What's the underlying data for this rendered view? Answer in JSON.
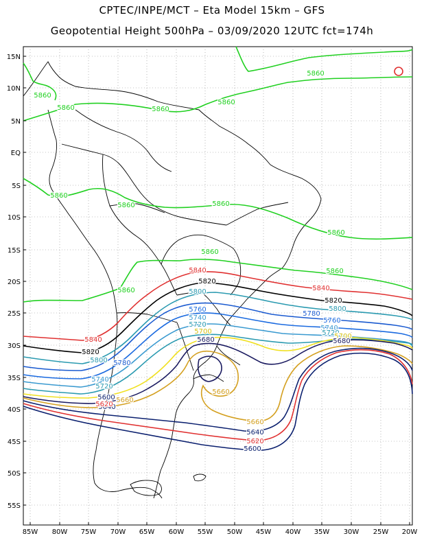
{
  "title_line1": "CPTEC/INPE/MCT –   Eta Model 15km – GFS",
  "title_line2": "Geopotential Height 500hPa – 03/09/2020 12UTC fct=174h",
  "lat_labels": [
    "15N",
    "10N",
    "5N",
    "EQ",
    "5S",
    "10S",
    "15S",
    "20S",
    "25S",
    "30S",
    "35S",
    "40S",
    "45S",
    "50S",
    "55S"
  ],
  "lon_labels": [
    "85W",
    "80W",
    "75W",
    "70W",
    "65W",
    "60W",
    "55W",
    "50W",
    "45W",
    "40W",
    "35W",
    "30W",
    "25W",
    "20W"
  ],
  "contour_colors": {
    "5600": "#0a1f6e",
    "5620": "#e03030",
    "5640": "#0a1f6e",
    "5660": "#d4a020",
    "5680": "#1a1a60",
    "5700": "#f0e020",
    "5720": "#2a9ab0",
    "5740": "#3a9ad0",
    "5760": "#1a6ae0",
    "5780": "#1a5ad0",
    "5800": "#2a9ab0",
    "5820": "#000000",
    "5840": "#e03030",
    "5860": "#20d020"
  },
  "contour_labels": [
    {
      "text": "5860",
      "color": "#20d020"
    },
    {
      "text": "5860",
      "color": "#20d020"
    },
    {
      "text": "5860",
      "color": "#20d020"
    },
    {
      "text": "5860",
      "color": "#20d020"
    },
    {
      "text": "5860",
      "color": "#20d020"
    },
    {
      "text": "5860",
      "color": "#20d020"
    },
    {
      "text": "5860",
      "color": "#20d020"
    },
    {
      "text": "5860",
      "color": "#20d020"
    },
    {
      "text": "5860",
      "color": "#20d020"
    },
    {
      "text": "5860",
      "color": "#20d020"
    },
    {
      "text": "5860",
      "color": "#20d020"
    },
    {
      "text": "5860",
      "color": "#20d020"
    },
    {
      "text": "5840",
      "color": "#e03030"
    },
    {
      "text": "5840",
      "color": "#e03030"
    },
    {
      "text": "5840",
      "color": "#e03030"
    },
    {
      "text": "5820",
      "color": "#000000"
    },
    {
      "text": "5820",
      "color": "#000000"
    },
    {
      "text": "5820",
      "color": "#000000"
    },
    {
      "text": "5800",
      "color": "#2a9ab0"
    },
    {
      "text": "5800",
      "color": "#2a9ab0"
    },
    {
      "text": "5800",
      "color": "#2a9ab0"
    },
    {
      "text": "5780",
      "color": "#1a5ad0"
    },
    {
      "text": "5780",
      "color": "#1a5ad0"
    },
    {
      "text": "5760",
      "color": "#1a6ae0"
    },
    {
      "text": "5760",
      "color": "#1a6ae0"
    },
    {
      "text": "5740",
      "color": "#3a9ad0"
    },
    {
      "text": "5740",
      "color": "#3a9ad0"
    },
    {
      "text": "5740",
      "color": "#3a9ad0"
    },
    {
      "text": "5720",
      "color": "#2a9ab0"
    },
    {
      "text": "5720",
      "color": "#2a9ab0"
    },
    {
      "text": "5720",
      "color": "#2a9ab0"
    },
    {
      "text": "5700",
      "color": "#d4c010"
    },
    {
      "text": "5700",
      "color": "#d4c010"
    },
    {
      "text": "5680",
      "color": "#1a1a60"
    },
    {
      "text": "5680",
      "color": "#1a1a60"
    },
    {
      "text": "5660",
      "color": "#d4a020"
    },
    {
      "text": "5660",
      "color": "#d4a020"
    },
    {
      "text": "5660",
      "color": "#d4a020"
    },
    {
      "text": "5640",
      "color": "#0a1f6e"
    },
    {
      "text": "5640",
      "color": "#0a1f6e"
    },
    {
      "text": "5620",
      "color": "#e03030"
    },
    {
      "text": "5620",
      "color": "#e03030"
    },
    {
      "text": "5600",
      "color": "#0a1f6e"
    },
    {
      "text": "5600",
      "color": "#0a1f6e"
    }
  ]
}
